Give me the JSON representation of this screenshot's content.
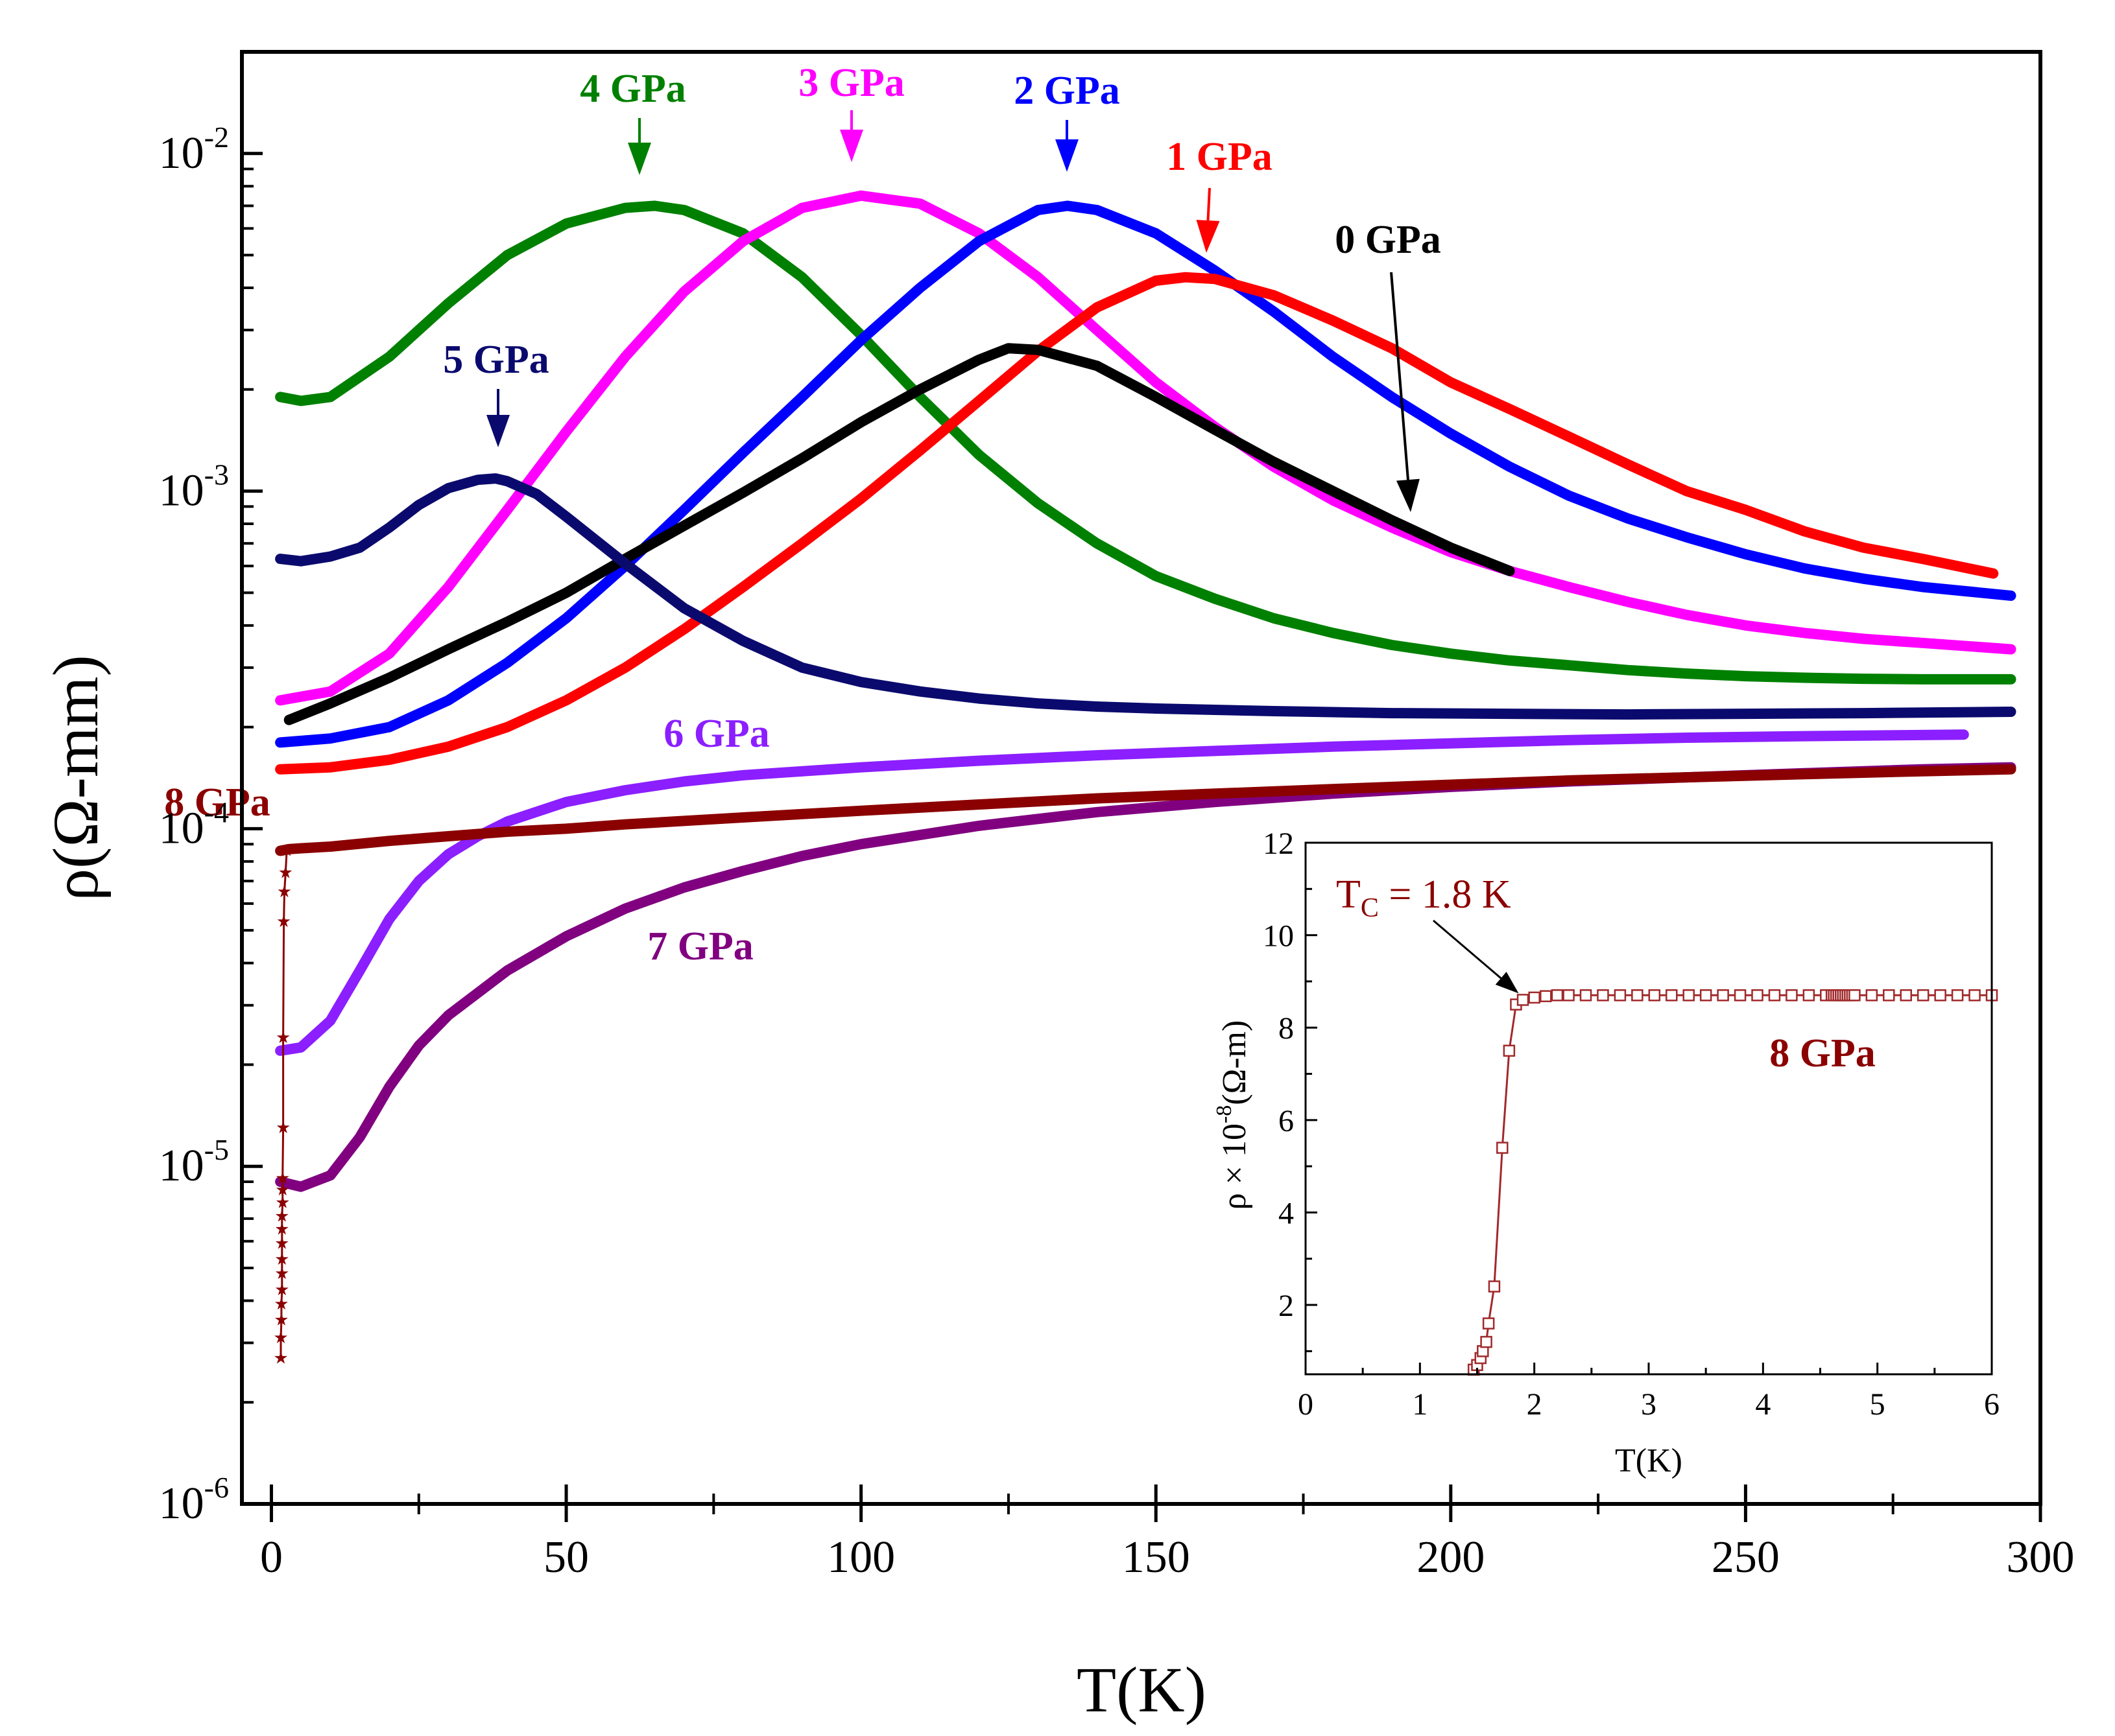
{
  "chart_data": [
    {
      "type": "line",
      "yscale": "log",
      "xlabel": "T(K)",
      "ylabel": "ρ(Ω-mm)",
      "xlim": [
        -5,
        300
      ],
      "ylim": [
        1e-06,
        0.02
      ],
      "xticks": [
        "0",
        "50",
        "100",
        "150",
        "200",
        "250",
        "300"
      ],
      "yticks": [
        {
          "base": "10",
          "exp": "-6"
        },
        {
          "base": "10",
          "exp": "-5"
        },
        {
          "base": "10",
          "exp": "-4"
        },
        {
          "base": "10",
          "exp": "-3"
        },
        {
          "base": "10",
          "exp": "-2"
        }
      ],
      "series": [
        {
          "name": "0 GPa",
          "color": "#000000",
          "label": "0 GPa",
          "x": [
            3,
            10,
            20,
            30,
            40,
            50,
            60,
            70,
            80,
            90,
            100,
            110,
            120,
            125,
            130,
            140,
            150,
            160,
            170,
            180,
            190,
            200,
            210
          ],
          "y": [
            0.00021,
            0.000235,
            0.00028,
            0.00034,
            0.00041,
            0.0005,
            0.00063,
            0.00079,
            0.00099,
            0.00125,
            0.0016,
            0.002,
            0.00245,
            0.00265,
            0.00262,
            0.00235,
            0.0019,
            0.00152,
            0.00122,
            0.001,
            0.00082,
            0.00068,
            0.00058
          ]
        },
        {
          "name": "1 GPa",
          "color": "#ff0000",
          "label": "1 GPa",
          "x": [
            1.5,
            10,
            20,
            30,
            40,
            50,
            60,
            70,
            80,
            90,
            100,
            110,
            120,
            130,
            140,
            150,
            155,
            160,
            170,
            180,
            190,
            200,
            210,
            220,
            230,
            240,
            250,
            260,
            270,
            280,
            292
          ],
          "y": [
            0.00015,
            0.000152,
            0.00016,
            0.000175,
            0.0002,
            0.00024,
            0.0003,
            0.00039,
            0.00052,
            0.0007,
            0.00095,
            0.00132,
            0.00185,
            0.0026,
            0.0035,
            0.0042,
            0.0043,
            0.00425,
            0.0038,
            0.0032,
            0.00265,
            0.0021,
            0.00175,
            0.00145,
            0.0012,
            0.001,
            0.00088,
            0.00076,
            0.00068,
            0.00063,
            0.00057
          ]
        },
        {
          "name": "2 GPa",
          "color": "#0000ff",
          "label": "2 GPa",
          "x": [
            1.5,
            10,
            20,
            30,
            40,
            50,
            60,
            70,
            80,
            90,
            100,
            110,
            120,
            130,
            135,
            140,
            150,
            160,
            170,
            180,
            190,
            200,
            210,
            220,
            230,
            240,
            250,
            260,
            270,
            280,
            295
          ],
          "y": [
            0.00018,
            0.000185,
            0.0002,
            0.00024,
            0.00031,
            0.00042,
            0.0006,
            0.00088,
            0.0013,
            0.0019,
            0.0028,
            0.004,
            0.0055,
            0.0068,
            0.007,
            0.0068,
            0.0058,
            0.0045,
            0.0034,
            0.0025,
            0.0019,
            0.00148,
            0.00118,
            0.00097,
            0.00083,
            0.00073,
            0.00065,
            0.00059,
            0.00055,
            0.00052,
            0.00049
          ]
        },
        {
          "name": "3 GPa",
          "color": "#ff00ff",
          "label": "3 GPa",
          "x": [
            1.5,
            10,
            20,
            30,
            40,
            50,
            60,
            70,
            80,
            90,
            100,
            110,
            120,
            130,
            140,
            150,
            160,
            170,
            180,
            190,
            200,
            210,
            220,
            230,
            240,
            250,
            260,
            270,
            280,
            295
          ],
          "y": [
            0.00024,
            0.000255,
            0.00033,
            0.00052,
            0.00088,
            0.0015,
            0.0025,
            0.0039,
            0.0055,
            0.0069,
            0.0075,
            0.0071,
            0.0058,
            0.0043,
            0.003,
            0.0021,
            0.00155,
            0.00118,
            0.00094,
            0.00078,
            0.00066,
            0.00058,
            0.00052,
            0.00047,
            0.00043,
            0.0004,
            0.00038,
            0.000365,
            0.000355,
            0.00034
          ]
        },
        {
          "name": "4 GPa",
          "color": "#008000",
          "label": "4 GPa",
          "x": [
            1.5,
            5,
            10,
            20,
            30,
            40,
            50,
            60,
            65,
            70,
            80,
            90,
            100,
            110,
            120,
            130,
            140,
            150,
            160,
            170,
            180,
            190,
            200,
            210,
            220,
            230,
            240,
            250,
            260,
            270,
            280,
            295
          ],
          "y": [
            0.0019,
            0.00185,
            0.0019,
            0.0025,
            0.0036,
            0.005,
            0.0062,
            0.0069,
            0.007,
            0.0068,
            0.0058,
            0.0043,
            0.0029,
            0.0019,
            0.00128,
            0.00092,
            0.0007,
            0.00056,
            0.00048,
            0.00042,
            0.00038,
            0.00035,
            0.00033,
            0.000315,
            0.000305,
            0.000295,
            0.000288,
            0.000283,
            0.00028,
            0.000278,
            0.000277,
            0.000277
          ]
        },
        {
          "name": "5 GPa",
          "color": "#0a0a6e",
          "label": "5 GPa",
          "x": [
            1.5,
            5,
            10,
            15,
            20,
            25,
            30,
            35,
            38,
            40,
            45,
            50,
            60,
            70,
            80,
            90,
            100,
            110,
            120,
            130,
            140,
            150,
            170,
            190,
            210,
            230,
            250,
            270,
            295
          ],
          "y": [
            0.00063,
            0.00062,
            0.00064,
            0.00068,
            0.00078,
            0.00091,
            0.00102,
            0.00108,
            0.00109,
            0.00107,
            0.00098,
            0.00084,
            0.00061,
            0.00045,
            0.00036,
            0.0003,
            0.000272,
            0.000255,
            0.000243,
            0.000235,
            0.00023,
            0.000227,
            0.000223,
            0.00022,
            0.000219,
            0.000218,
            0.000219,
            0.00022,
            0.000222
          ]
        },
        {
          "name": "6 GPa",
          "color": "#8b1fff",
          "label": "6 GPa",
          "x": [
            1.5,
            5,
            10,
            15,
            20,
            25,
            30,
            35,
            40,
            50,
            60,
            70,
            80,
            100,
            120,
            140,
            160,
            180,
            200,
            220,
            240,
            260,
            287
          ],
          "y": [
            2.2e-05,
            2.25e-05,
            2.7e-05,
            3.8e-05,
            5.4e-05,
            7e-05,
            8.4e-05,
            9.5e-05,
            0.000105,
            0.00012,
            0.00013,
            0.000138,
            0.000144,
            0.000152,
            0.000159,
            0.000165,
            0.00017,
            0.000175,
            0.000179,
            0.000183,
            0.000186,
            0.000188,
            0.00019
          ]
        },
        {
          "name": "7 GPa",
          "color": "#800080",
          "label": "7 GPa",
          "x": [
            1.5,
            5,
            10,
            15,
            20,
            25,
            30,
            40,
            50,
            60,
            70,
            80,
            90,
            100,
            120,
            140,
            160,
            180,
            200,
            220,
            240,
            260,
            280,
            295
          ],
          "y": [
            9e-06,
            8.7e-06,
            9.4e-06,
            1.22e-05,
            1.72e-05,
            2.28e-05,
            2.8e-05,
            3.8e-05,
            4.8e-05,
            5.8e-05,
            6.7e-05,
            7.5e-05,
            8.3e-05,
            9e-05,
            0.000102,
            0.000112,
            0.00012,
            0.000127,
            0.000133,
            0.000138,
            0.000142,
            0.000146,
            0.00015,
            0.000152
          ]
        },
        {
          "name": "8 GPa",
          "color": "#8b0000",
          "label": "8 GPa",
          "x": [
            1.5,
            3,
            5,
            10,
            20,
            30,
            40,
            50,
            60,
            80,
            100,
            120,
            140,
            160,
            180,
            200,
            220,
            240,
            260,
            280,
            295
          ],
          "y": [
            8.6e-05,
            8.7e-05,
            8.75e-05,
            8.85e-05,
            9.2e-05,
            9.5e-05,
            9.8e-05,
            0.0001,
            0.000103,
            0.000108,
            0.000113,
            0.000118,
            0.000123,
            0.000127,
            0.000131,
            0.000135,
            0.000139,
            0.000142,
            0.000145,
            0.000148,
            0.00015
          ]
        },
        {
          "name": "8 GPa low-T drop",
          "color": "#8b0000",
          "marker": "star",
          "x": [
            1.6,
            1.6,
            1.7,
            1.7,
            1.8,
            1.8,
            1.8,
            1.8,
            1.8,
            1.8,
            1.9,
            1.9,
            1.9,
            2.0,
            2.0,
            2.1,
            2.2,
            2.4,
            2.6
          ],
          "y": [
            2.7e-06,
            3.1e-06,
            3.5e-06,
            3.9e-06,
            4.3e-06,
            4.8e-06,
            5.3e-06,
            5.9e-06,
            6.5e-06,
            7.1e-06,
            7.8e-06,
            8.5e-06,
            9.2e-06,
            1.3e-05,
            2.4e-05,
            5.3e-05,
            6.5e-05,
            7.4e-05,
            8.6e-05
          ]
        }
      ]
    },
    {
      "type": "scatter",
      "name": "inset",
      "xlabel": "T(K)",
      "ylabel": "ρ × 10",
      "ylabel_exp": "-8",
      "ylabel_unit": "(Ω-m)",
      "xlim": [
        0,
        6
      ],
      "ylim": [
        0.5,
        12
      ],
      "xticks": [
        "0",
        "1",
        "2",
        "3",
        "4",
        "5",
        "6"
      ],
      "yticks": [
        "2",
        "4",
        "6",
        "8",
        "10",
        "12"
      ],
      "annotation": {
        "prefix": "T",
        "sub": "C",
        "suffix": " = 1.8 K",
        "at_x": 1.92,
        "at_y": 8.6
      },
      "series_label": "8 GPa",
      "color": "#a0292b",
      "x": [
        1.47,
        1.5,
        1.53,
        1.55,
        1.58,
        1.6,
        1.65,
        1.72,
        1.78,
        1.84,
        1.9,
        2.0,
        2.1,
        2.2,
        2.3,
        2.45,
        2.6,
        2.75,
        2.9,
        3.05,
        3.2,
        3.35,
        3.5,
        3.65,
        3.8,
        3.95,
        4.1,
        4.25,
        4.4,
        4.55,
        4.6,
        4.62,
        4.64,
        4.66,
        4.68,
        4.7,
        4.72,
        4.74,
        4.76,
        4.78,
        4.8,
        4.95,
        5.1,
        5.25,
        5.4,
        5.55,
        5.7,
        5.85,
        6.0
      ],
      "y": [
        0.6,
        0.7,
        0.85,
        1.0,
        1.2,
        1.6,
        2.4,
        5.4,
        7.5,
        8.5,
        8.6,
        8.65,
        8.68,
        8.7,
        8.7,
        8.7,
        8.7,
        8.7,
        8.7,
        8.7,
        8.7,
        8.7,
        8.7,
        8.7,
        8.7,
        8.7,
        8.7,
        8.7,
        8.7,
        8.7,
        8.7,
        8.7,
        8.7,
        8.7,
        8.7,
        8.7,
        8.7,
        8.7,
        8.7,
        8.7,
        8.7,
        8.7,
        8.7,
        8.7,
        8.7,
        8.7,
        8.7,
        8.7,
        8.7
      ]
    }
  ]
}
